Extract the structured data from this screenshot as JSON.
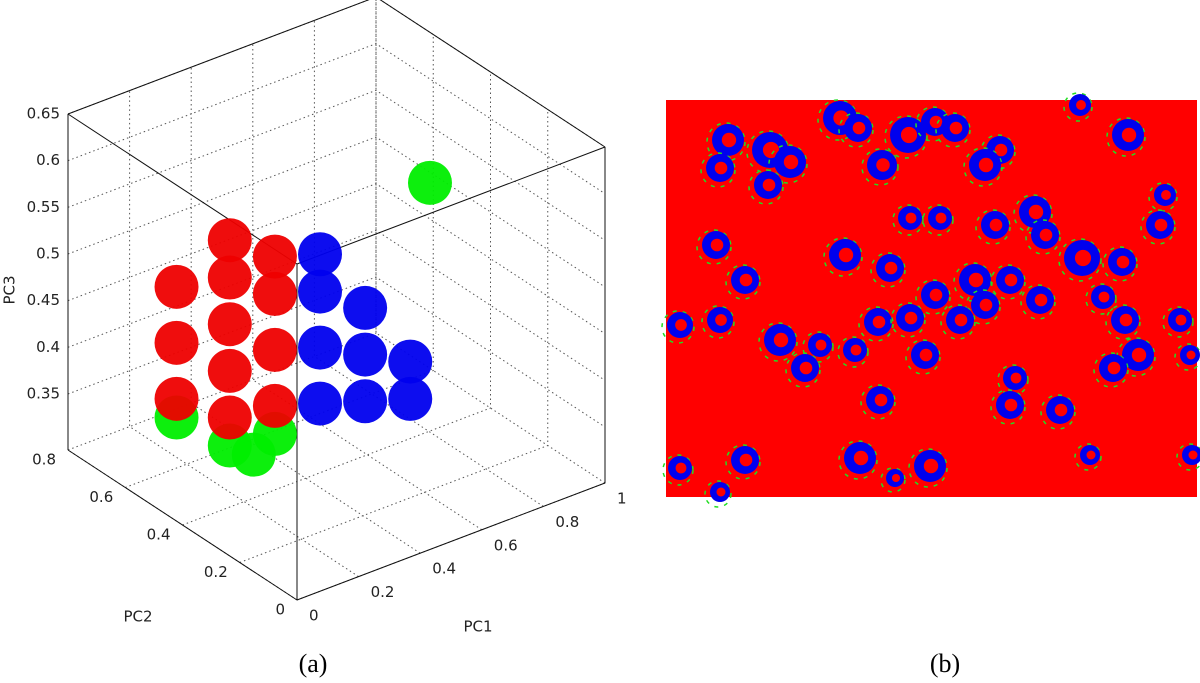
{
  "chart_data": {
    "type": "scatter3d",
    "xlabel": "PC1",
    "ylabel": "PC2",
    "zlabel": "PC3",
    "xlim": [
      0,
      1
    ],
    "ylim": [
      0,
      0.8
    ],
    "zlim": [
      0.29,
      0.65
    ],
    "xticks": [
      0,
      0.2,
      0.4,
      0.6,
      0.8,
      1
    ],
    "yticks": [
      0,
      0.2,
      0.4,
      0.6,
      0.8
    ],
    "zticks": [
      0.35,
      0.4,
      0.45,
      0.5,
      0.55,
      0.6,
      0.65
    ],
    "grid": true,
    "series": [
      {
        "color": "#00ee00",
        "x": [
          0.2,
          0.3,
          0.12,
          0.25,
          0.85
        ],
        "y": [
          0.45,
          0.4,
          0.55,
          0.42,
          0.45
        ],
        "z": [
          0.34,
          0.35,
          0.36,
          0.33,
          0.54
        ]
      },
      {
        "color": "#ee0000",
        "x": [
          0.12,
          0.12,
          0.12,
          0.2,
          0.2,
          0.2,
          0.2,
          0.2,
          0.3,
          0.3,
          0.3,
          0.3
        ],
        "y": [
          0.55,
          0.55,
          0.55,
          0.45,
          0.45,
          0.45,
          0.45,
          0.45,
          0.4,
          0.4,
          0.4,
          0.4
        ],
        "z": [
          0.38,
          0.44,
          0.5,
          0.37,
          0.42,
          0.47,
          0.52,
          0.56,
          0.38,
          0.44,
          0.5,
          0.54
        ]
      },
      {
        "color": "#0000ee",
        "x": [
          0.4,
          0.4,
          0.4,
          0.4,
          0.5,
          0.5,
          0.5,
          0.6,
          0.6
        ],
        "y": [
          0.35,
          0.35,
          0.35,
          0.35,
          0.3,
          0.3,
          0.3,
          0.25,
          0.25
        ],
        "z": [
          0.38,
          0.44,
          0.5,
          0.54,
          0.38,
          0.43,
          0.48,
          0.38,
          0.42
        ]
      }
    ]
  },
  "captions": [
    "(a)",
    "(b)"
  ]
}
